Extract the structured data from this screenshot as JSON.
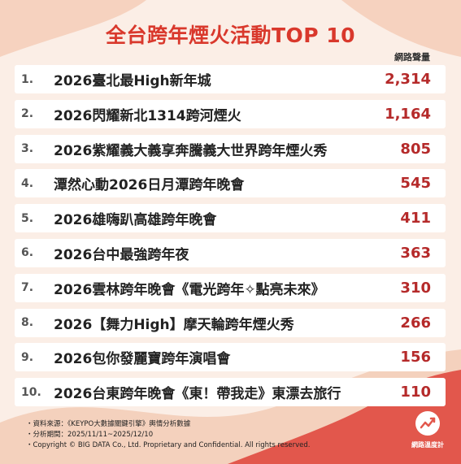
{
  "chart_data": {
    "type": "table",
    "title": "全台跨年煙火活動TOP 10",
    "column_header": "網路聲量",
    "rows": [
      {
        "rank": "1.",
        "name": "2026臺北最High新年城",
        "value": "2,314"
      },
      {
        "rank": "2.",
        "name": "2026閃耀新北1314跨河煙火",
        "value": "1,164"
      },
      {
        "rank": "3.",
        "name": "2026紫耀義大義享奔騰義大世界跨年煙火秀",
        "value": "805"
      },
      {
        "rank": "4.",
        "name": "潭然心動2026日月潭跨年晚會",
        "value": "545"
      },
      {
        "rank": "5.",
        "name": "2026雄嗨趴高雄跨年晚會",
        "value": "411"
      },
      {
        "rank": "6.",
        "name": "2026台中最強跨年夜",
        "value": "363"
      },
      {
        "rank": "7.",
        "name": "2026雲林跨年晚會《電光跨年✧點亮未來》",
        "value": "310"
      },
      {
        "rank": "8.",
        "name": "2026【舞力High】摩天輪跨年煙火秀",
        "value": "266"
      },
      {
        "rank": "9.",
        "name": "2026包你發麗寶跨年演唱會",
        "value": "156"
      },
      {
        "rank": "10.",
        "name": "2026台東跨年晚會《東！帶我走》東漂去旅行",
        "value": "110"
      }
    ]
  },
  "footer": {
    "source": "・資料來源：《KEYPO大數據關鍵引擎》輿情分析數據",
    "period": "・分析期間：2025/11/11~2025/12/10",
    "copyright": "・Copyright © BIG DATA Co., Ltd. Proprietary and Confidential. All rights reserved."
  },
  "logo": {
    "text": "網路溫度計",
    "icon": "trend-arrow-icon"
  },
  "colors": {
    "accent": "#d9382c",
    "value": "#b52a2a",
    "background": "#fbeee6",
    "wave": "#e2574c"
  }
}
